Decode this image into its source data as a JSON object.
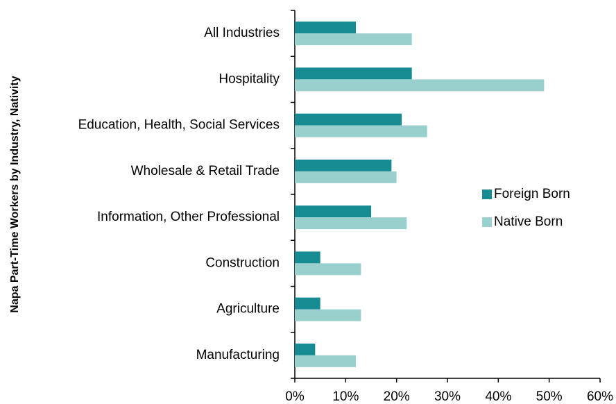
{
  "chart_data": {
    "type": "hbar",
    "y_axis_label": "Napa Part-Time Workers by Industry, Nativity",
    "categories": [
      "All Industries",
      "Hospitality",
      "Education, Health, Social Services",
      "Wholesale & Retail Trade",
      "Information, Other Professional",
      "Construction",
      "Agriculture",
      "Manufacturing"
    ],
    "series": [
      {
        "name": "Foreign Born",
        "color": "#168b92",
        "values": [
          12,
          23,
          21,
          19,
          15,
          5,
          5,
          4
        ]
      },
      {
        "name": "Native Born",
        "color": "#99cfcc",
        "values": [
          23,
          49,
          26,
          20,
          22,
          13,
          13,
          12
        ]
      }
    ],
    "xlim": [
      0,
      60
    ],
    "xticks": [
      {
        "value": 0,
        "label": "0%"
      },
      {
        "value": 10,
        "label": "10%"
      },
      {
        "value": 20,
        "label": "20%"
      },
      {
        "value": 30,
        "label": "30%"
      },
      {
        "value": 40,
        "label": "40%"
      },
      {
        "value": 50,
        "label": "50%"
      },
      {
        "value": 60,
        "label": "60%"
      }
    ],
    "grid": false,
    "legend": "right"
  }
}
